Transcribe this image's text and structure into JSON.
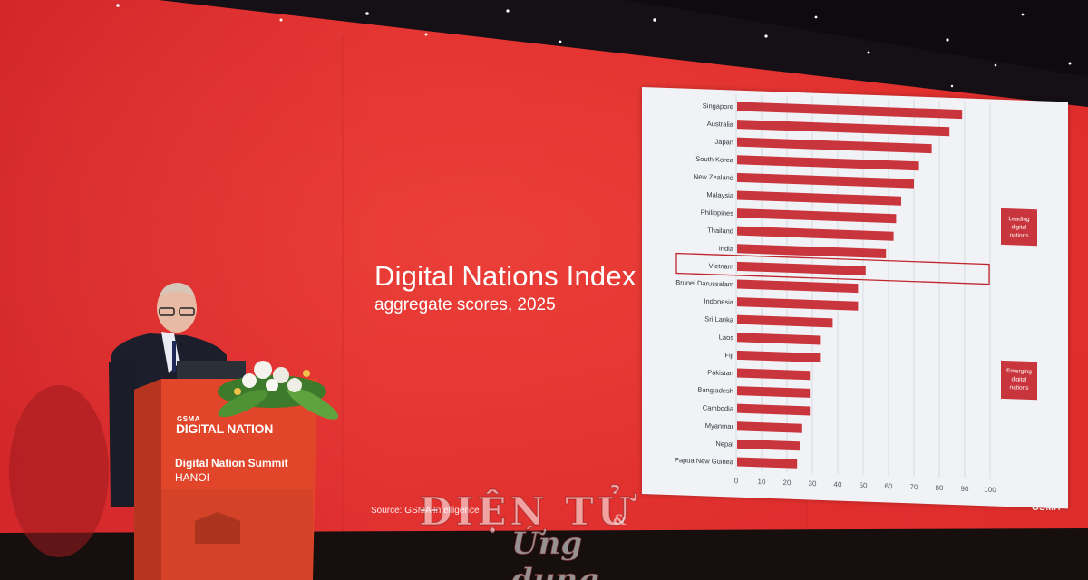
{
  "slide": {
    "title": "Digital Nations Index",
    "subtitle": "aggregate scores, 2025",
    "source": "Source: GSMA Intelligence",
    "brand": "GSMA"
  },
  "podium": {
    "logo_small": "GSMA",
    "logo": "DIGITAL NATION",
    "summit": "Digital Nation Summit",
    "city": "HANOI"
  },
  "watermark": {
    "line1": "ĐIỆN TỬ",
    "amp": "&",
    "line2": "Ứng dụng"
  },
  "colors": {
    "backdrop_red": "#d82a2c",
    "bar_red": "#c9353c",
    "panel_bg": "#f1f2f6"
  },
  "chart_data": {
    "type": "bar",
    "orientation": "horizontal",
    "categories": [
      "Singapore",
      "Australia",
      "Japan",
      "South Korea",
      "New Zealand",
      "Malaysia",
      "Philippines",
      "Thailand",
      "India",
      "Vietnam",
      "Brunei Darussalam",
      "Indonesia",
      "Sri Lanka",
      "Laos",
      "Fiji",
      "Pakistan",
      "Bangladesh",
      "Cambodia",
      "Myanmar",
      "Nepal",
      "Papua New Guinea"
    ],
    "values": [
      89,
      84,
      77,
      72,
      70,
      65,
      63,
      62,
      59,
      51,
      48,
      48,
      38,
      33,
      33,
      29,
      29,
      29,
      26,
      25,
      24
    ],
    "xticks": [
      "0",
      "10",
      "20",
      "30",
      "40",
      "50",
      "60",
      "70",
      "80",
      "90",
      "100"
    ],
    "xlim": [
      0,
      100
    ],
    "grid": true,
    "highlight": "Vietnam",
    "groups": [
      {
        "label": "Leading digital nations",
        "lines": [
          "Leading",
          "digital",
          "nations"
        ]
      },
      {
        "label": "Emerging digital nations",
        "lines": [
          "Emerging",
          "digital",
          "nations"
        ]
      }
    ]
  }
}
